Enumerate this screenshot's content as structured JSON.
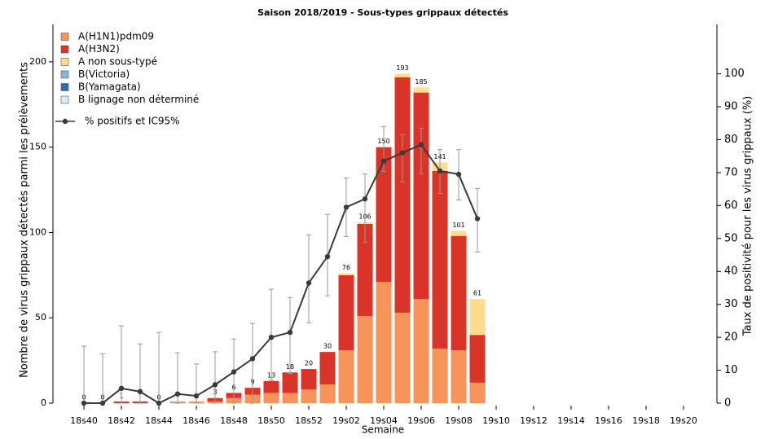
{
  "chart_data": {
    "type": "bar",
    "title": "Saison 2018/2019 - Sous-types grippaux détectés",
    "xlabel": "Semaine",
    "ylabel": "Nombre de virus grippaux détectés parmi les prélèvements",
    "y2label": "Taux de positivité pour les virus grippaux (%)",
    "categories": [
      "18s40",
      null,
      "18s42",
      null,
      "18s44",
      null,
      "18s46",
      null,
      "18s48",
      null,
      "18s50",
      null,
      "18s52",
      null,
      "19s02",
      null,
      "19s04",
      null,
      "19s06",
      null,
      "19s08",
      null,
      "19s10",
      null,
      "19s12",
      null,
      "19s14",
      null,
      "19s16",
      null,
      "19s18",
      null,
      "19s20"
    ],
    "ylim": [
      0,
      220
    ],
    "yticks": [
      0,
      50,
      100,
      150,
      200
    ],
    "y2lim": [
      0,
      114
    ],
    "y2ticks": [
      0,
      10,
      20,
      30,
      40,
      50,
      60,
      70,
      80,
      90,
      100
    ],
    "series": [
      {
        "name": "A(H1N1)pdm09",
        "color": "#f8935a",
        "values": [
          0,
          0,
          0,
          0,
          0,
          1,
          1,
          1,
          3,
          5,
          6,
          6,
          8,
          11,
          31,
          51,
          71,
          53,
          61,
          32,
          31,
          12,
          null,
          null,
          null,
          null,
          null,
          null,
          null,
          null,
          null,
          null,
          null
        ]
      },
      {
        "name": "A(H3N2)",
        "color": "#d93427",
        "values": [
          0,
          0,
          1,
          1,
          0,
          0,
          0,
          2,
          3,
          4,
          7,
          12,
          12,
          19,
          44,
          54,
          79,
          138,
          121,
          104,
          67,
          28,
          null,
          null,
          null,
          null,
          null,
          null,
          null,
          null,
          null,
          null,
          null
        ]
      },
      {
        "name": "A non sous-typé",
        "color": "#fddc8e",
        "values": [
          0,
          0,
          0,
          0,
          0,
          0,
          0,
          0,
          0,
          0,
          0,
          0,
          0,
          0,
          1,
          1,
          0,
          2,
          3,
          5,
          3,
          21,
          null,
          null,
          null,
          null,
          null,
          null,
          null,
          null,
          null,
          null,
          null
        ]
      },
      {
        "name": "B(Victoria)",
        "color": "#86b6d8",
        "values": [
          0,
          0,
          0,
          0,
          0,
          0,
          0,
          0,
          0,
          0,
          0,
          0,
          0,
          0,
          0,
          0,
          0,
          0,
          0,
          0,
          0,
          0,
          null,
          null,
          null,
          null,
          null,
          null,
          null,
          null,
          null,
          null,
          null
        ]
      },
      {
        "name": "B(Yamagata)",
        "color": "#2f6cb1",
        "values": [
          0,
          0,
          0,
          0,
          0,
          0,
          0,
          0,
          0,
          0,
          0,
          0,
          0,
          0,
          0,
          0,
          0,
          0,
          0,
          0,
          0,
          0,
          null,
          null,
          null,
          null,
          null,
          null,
          null,
          null,
          null,
          null,
          null
        ]
      },
      {
        "name": "B lignage non déterminé",
        "color": "#dbeef6",
        "values": [
          0,
          0,
          0,
          0,
          0,
          0,
          0,
          0,
          0,
          0,
          0,
          0,
          0,
          0,
          0,
          0,
          0,
          0,
          0,
          0,
          0,
          0,
          null,
          null,
          null,
          null,
          null,
          null,
          null,
          null,
          null,
          null,
          null
        ]
      }
    ],
    "bar_labels": [
      0,
      0,
      1,
      null,
      0,
      null,
      null,
      3,
      6,
      9,
      13,
      18,
      20,
      30,
      76,
      106,
      150,
      193,
      185,
      141,
      101,
      61,
      null,
      null,
      null,
      null,
      null,
      null,
      null,
      null,
      null,
      null,
      null
    ],
    "line": {
      "name": "% positifs et IC95%",
      "color": "#3a3a3a",
      "axis": "y2",
      "values": [
        0,
        0,
        4.5,
        3.5,
        0,
        2.8,
        2.2,
        5.6,
        9.5,
        13.5,
        20,
        21.5,
        36.5,
        44.5,
        59.5,
        62,
        73.5,
        76,
        78.5,
        70.5,
        69.5,
        56,
        null,
        null,
        null,
        null,
        null,
        null,
        null,
        null,
        null,
        null,
        null
      ],
      "ci_low": [
        0,
        0,
        0,
        0,
        0,
        0,
        0,
        0,
        0,
        0,
        7,
        9,
        24.4,
        32.6,
        50.6,
        48.9,
        70.4,
        67.2,
        69.6,
        63.7,
        61.7,
        45.9,
        null,
        null,
        null,
        null,
        null,
        null,
        null,
        null,
        null,
        null,
        null
      ],
      "ci_high": [
        17.3,
        15,
        23.5,
        18,
        21.5,
        15.3,
        11.9,
        15.6,
        19.5,
        24.2,
        34.6,
        32.1,
        51.1,
        57.3,
        68.4,
        69.6,
        84,
        81.5,
        83.5,
        77,
        77,
        65.2,
        null,
        null,
        null,
        null,
        null,
        null,
        null,
        null,
        null,
        null,
        null
      ]
    }
  }
}
